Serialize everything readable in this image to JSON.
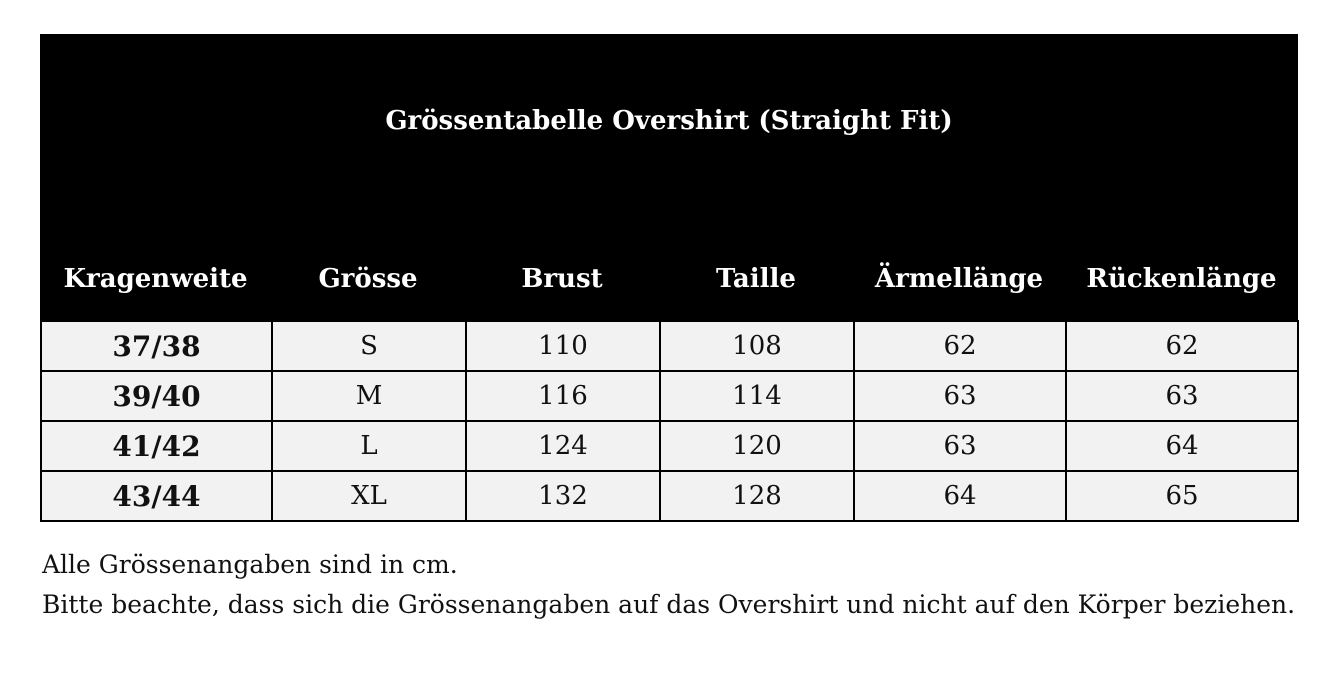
{
  "title": "Grössentabelle Overshirt (Straight Fit)",
  "headers": [
    "Kragenweite",
    "Grösse",
    "Brust",
    "Taille",
    "Ärmellänge",
    "Rückenlänge"
  ],
  "rows": [
    [
      "37/38",
      "S",
      "110",
      "108",
      "62",
      "62"
    ],
    [
      "39/40",
      "M",
      "116",
      "114",
      "63",
      "63"
    ],
    [
      "41/42",
      "L",
      "124",
      "120",
      "63",
      "64"
    ],
    [
      "43/44",
      "XL",
      "132",
      "128",
      "64",
      "65"
    ]
  ],
  "notes": [
    "Alle Grössenangaben sind in cm.",
    "Bitte beachte, dass sich die Grössenangaben auf das Overshirt und nicht auf den Körper beziehen."
  ],
  "colors": {
    "header_bg": "#000000",
    "row_bg": "#f2f2f2"
  }
}
